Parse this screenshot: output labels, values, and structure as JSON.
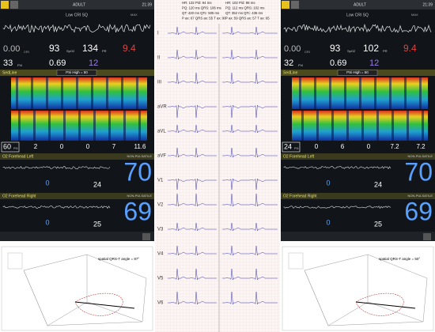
{
  "monitors": [
    {
      "mode": "ADULT",
      "time": "21:39",
      "sq": "Low CRI SQ",
      "max": "MAX",
      "cri": "0.00",
      "cri_label": "CRI",
      "spo2": "93",
      "spo2_label": "SpO2",
      "pr": "134",
      "pr_label": "PR",
      "sphb": "9.4",
      "pvi": "33",
      "pvi_label": "PVi",
      "orh": "0.69",
      "purple": "12",
      "sedline": "SedLine",
      "psi_alarm": "PSi High = 50",
      "psi": "60",
      "psi_label": "PSi",
      "sed_params": [
        "2",
        "0",
        "0",
        "7",
        "11.6"
      ],
      "left_label": "O2 Forehead Left",
      "left_status": "NON-PULSATILE",
      "left_value": "70",
      "left_delta": "0",
      "left_base": "24",
      "right_label": "O2 Forehead Right",
      "right_status": "NON-PULSATILE",
      "right_value": "69",
      "right_delta": "0",
      "right_base": "25"
    },
    {
      "mode": "ADULT",
      "time": "21:39",
      "sq": "Low CRI SQ",
      "max": "MAX",
      "cri": "0.00",
      "cri_label": "CRI",
      "spo2": "93",
      "spo2_label": "SpO2",
      "pr": "102",
      "pr_label": "PR",
      "sphb": "9.4",
      "pvi": "32",
      "pvi_label": "PVi",
      "orh": "0.69",
      "purple": "12",
      "sedline": "SedLine",
      "psi_alarm": "PSi High = 50",
      "psi": "24",
      "psi_label": "PSi",
      "sed_params": [
        "0",
        "6",
        "0",
        "7.2",
        "7.2"
      ],
      "left_label": "O2 Forehead Left",
      "left_status": "NON-PULSATILE",
      "left_value": "70",
      "left_delta": "0",
      "left_base": "24",
      "right_label": "O2 Forehead Right",
      "right_status": "NON-PULSATILE",
      "right_value": "69",
      "right_delta": "0",
      "right_base": "25"
    }
  ],
  "ecg": {
    "left_header": [
      "HR: 132 P/d: 94 ms",
      "PQ: 120 ms QRS: 106 ms",
      "QT: 420 ms QTc: 505 ms",
      "P ax: 67 QRS ax: 55 T ax: 90"
    ],
    "right_header": [
      "HR: 102 P/d: 98 ms",
      "PQ: 112 ms QRS: 102 ms",
      "QT: 352 ms QTc: 436 ms",
      "P ax: 59 QRS ax: 57 T ax: 65"
    ],
    "leads": [
      "I",
      "II",
      "III",
      "aVR",
      "aVL",
      "aVF",
      "V1",
      "V2",
      "V3",
      "V4",
      "V5",
      "V6"
    ]
  },
  "vectors": [
    {
      "label": "spatial QRS-T angle = 87°"
    },
    {
      "label": "spatial QRS-T angle = 50°"
    }
  ]
}
